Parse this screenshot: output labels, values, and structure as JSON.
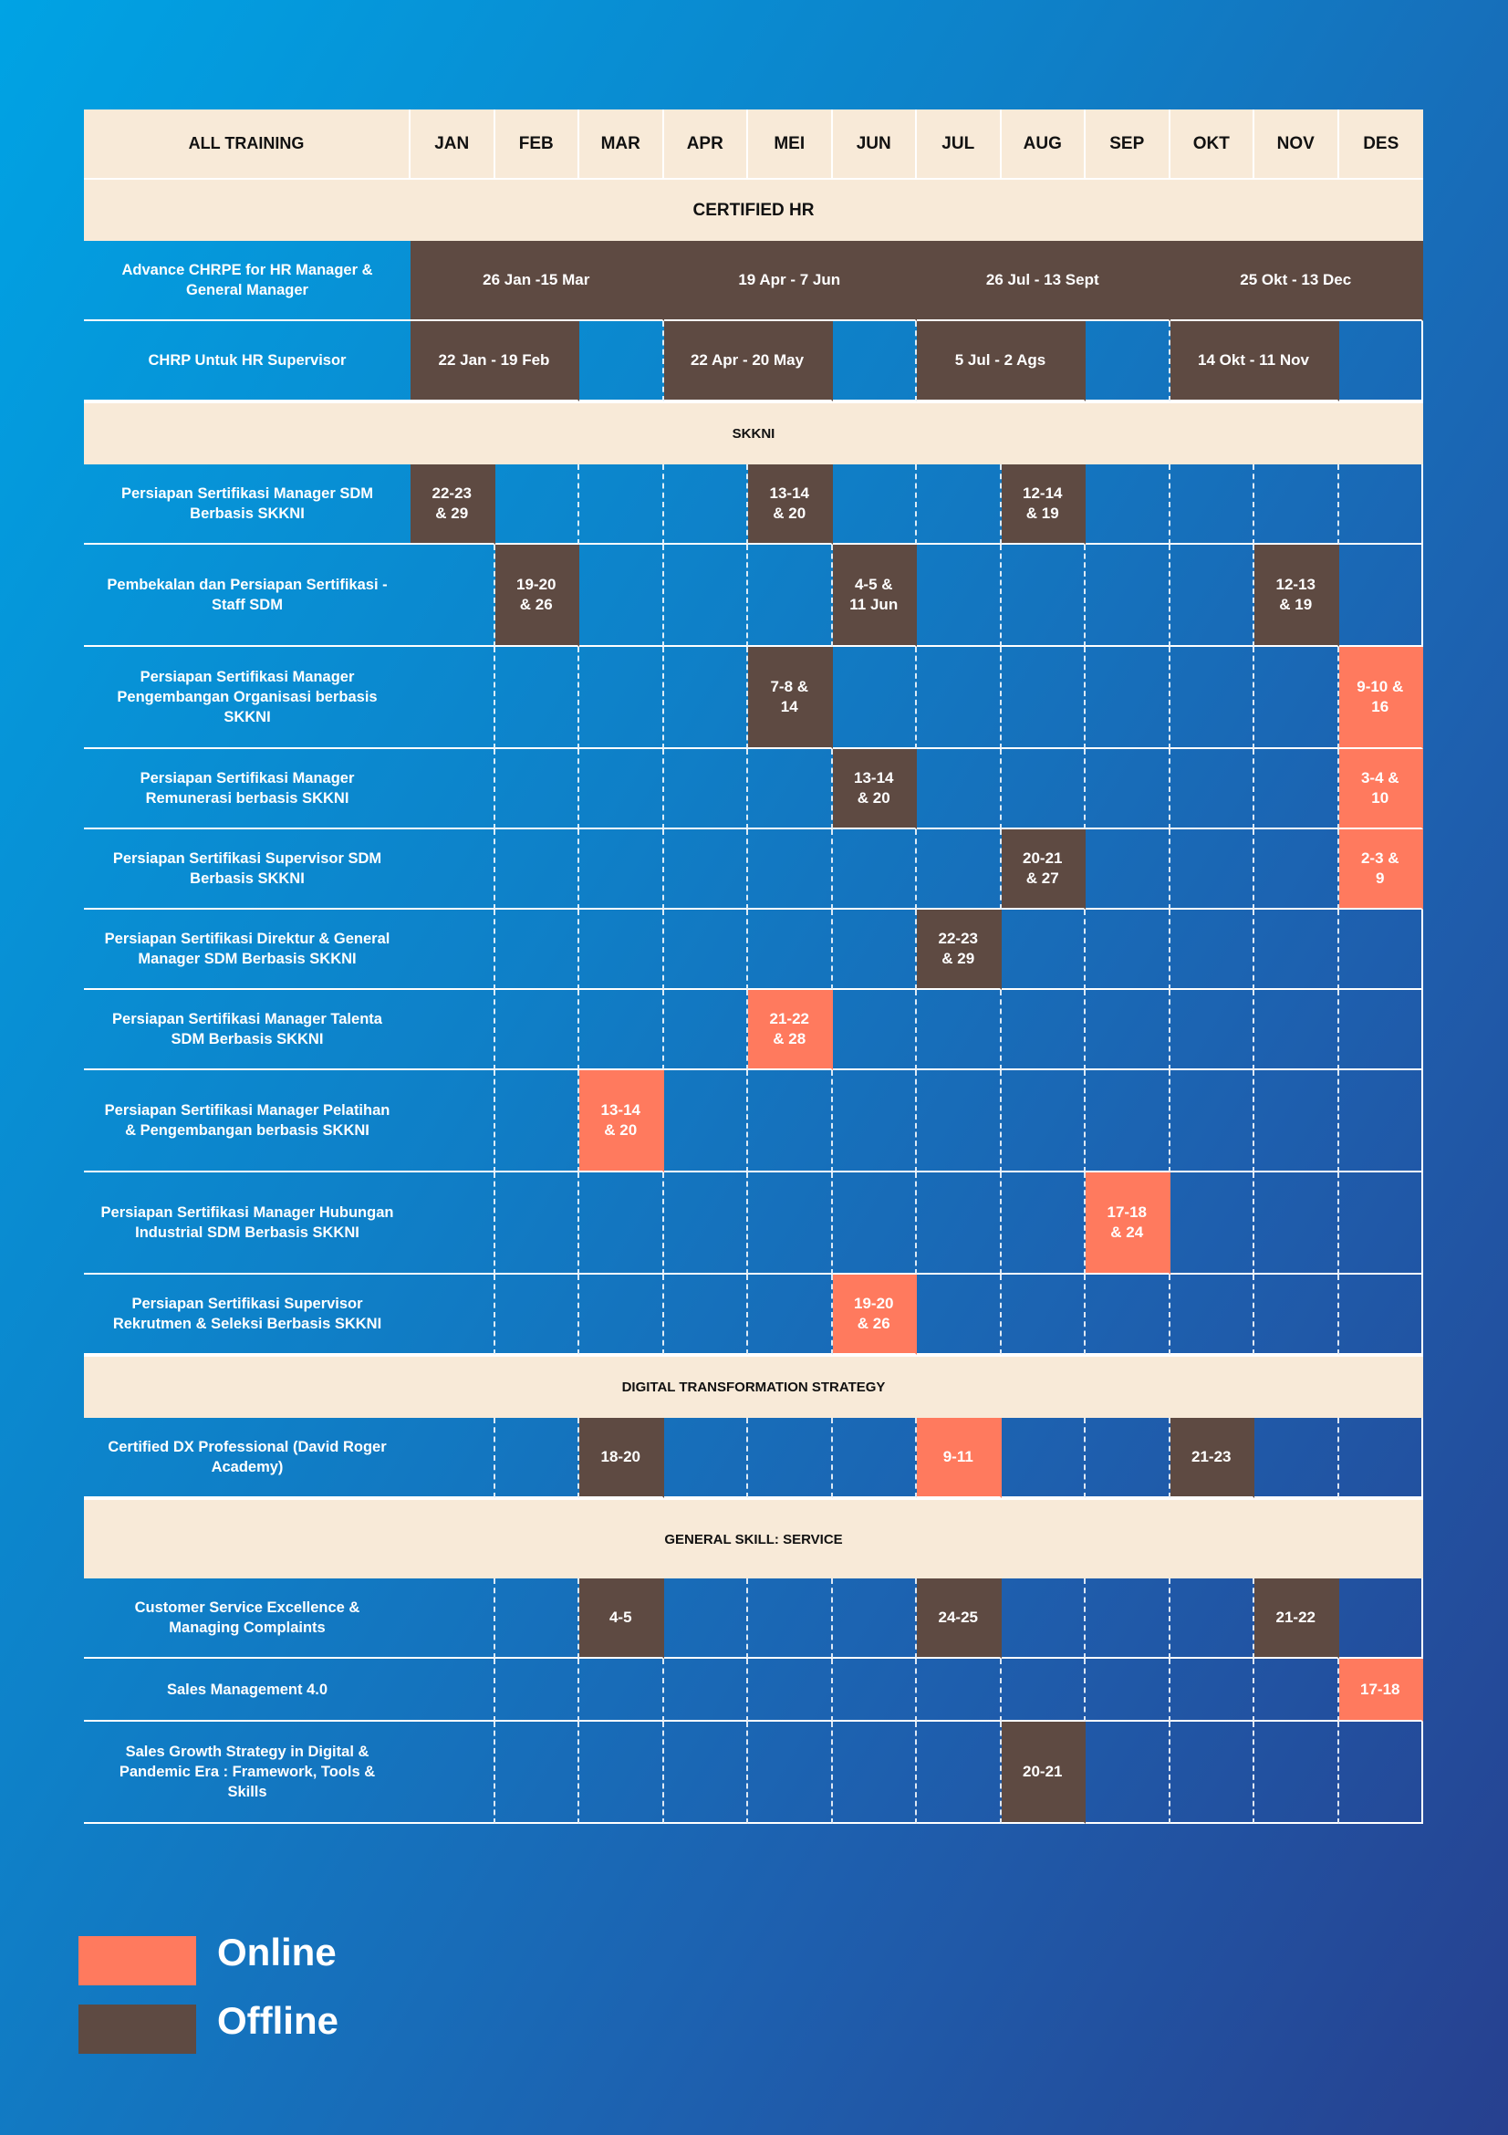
{
  "colors": {
    "background_start": "#00a3e4",
    "background_end": "#27408f",
    "header_bg": "#f8ead8",
    "online": "#ff7a5e",
    "offline": "#5e4a42",
    "text_light": "#ffffff",
    "text_dark": "#111111"
  },
  "table": {
    "header": "ALL TRAINING",
    "months": [
      "JAN",
      "FEB",
      "MAR",
      "APR",
      "MEI",
      "JUN",
      "JUL",
      "AUG",
      "SEP",
      "OKT",
      "NOV",
      "DES"
    ],
    "rows": [
      {
        "type": "section",
        "title": "CERTIFIED HR"
      },
      {
        "type": "training",
        "name": "Advance CHRPE for HR Manager & General Manager",
        "events": [
          {
            "label": "26 Jan -15 Mar",
            "start": 1,
            "span": 3,
            "mode": "offline"
          },
          {
            "label": "19 Apr - 7 Jun",
            "start": 4,
            "span": 3,
            "mode": "offline"
          },
          {
            "label": "26 Jul - 13 Sept",
            "start": 7,
            "span": 3,
            "mode": "offline"
          },
          {
            "label": "25 Okt - 13 Dec",
            "start": 10,
            "span": 3,
            "mode": "offline"
          }
        ]
      },
      {
        "type": "training",
        "name": "CHRP Untuk HR Supervisor",
        "events": [
          {
            "label": "22 Jan - 19 Feb",
            "start": 1,
            "span": 2,
            "mode": "offline"
          },
          {
            "label": "22 Apr - 20 May",
            "start": 4,
            "span": 2,
            "mode": "offline"
          },
          {
            "label": "5 Jul - 2 Ags",
            "start": 7,
            "span": 2,
            "mode": "offline"
          },
          {
            "label": "14 Okt - 11 Nov",
            "start": 10,
            "span": 2,
            "mode": "offline"
          }
        ]
      },
      {
        "type": "section",
        "title": "SKKNI"
      },
      {
        "type": "training",
        "name": "Persiapan Sertifikasi Manager SDM Berbasis SKKNI",
        "events": [
          {
            "label": "22-23\n& 29",
            "start": 1,
            "span": 1,
            "mode": "offline"
          },
          {
            "label": "13-14\n& 20",
            "start": 5,
            "span": 1,
            "mode": "offline"
          },
          {
            "label": "12-14\n& 19",
            "start": 8,
            "span": 1,
            "mode": "offline"
          }
        ]
      },
      {
        "type": "training",
        "name": "Pembekalan dan Persiapan Sertifikasi -Staff  SDM",
        "events": [
          {
            "label": "19-20\n& 26",
            "start": 2,
            "span": 1,
            "mode": "offline"
          },
          {
            "label": "4-5 &\n11 Jun",
            "start": 6,
            "span": 1,
            "mode": "offline"
          },
          {
            "label": "12-13\n& 19",
            "start": 11,
            "span": 1,
            "mode": "offline"
          }
        ]
      },
      {
        "type": "training",
        "name": "Persiapan Sertifikasi Manager Pengembangan Organisasi berbasis SKKNI",
        "events": [
          {
            "label": "7-8 &\n14",
            "start": 5,
            "span": 1,
            "mode": "offline"
          },
          {
            "label": "9-10 &\n16",
            "start": 12,
            "span": 1,
            "mode": "online"
          }
        ]
      },
      {
        "type": "training",
        "name": "Persiapan Sertifikasi Manager Remunerasi berbasis SKKNI",
        "events": [
          {
            "label": "13-14\n& 20",
            "start": 6,
            "span": 1,
            "mode": "offline"
          },
          {
            "label": "3-4 &\n10",
            "start": 12,
            "span": 1,
            "mode": "online"
          }
        ]
      },
      {
        "type": "training",
        "name": "Persiapan Sertifikasi Supervisor SDM Berbasis SKKNI",
        "events": [
          {
            "label": "20-21\n& 27",
            "start": 8,
            "span": 1,
            "mode": "offline"
          },
          {
            "label": "2-3 &\n9",
            "start": 12,
            "span": 1,
            "mode": "online"
          }
        ]
      },
      {
        "type": "training",
        "name": "Persiapan Sertifikasi Direktur & General Manager SDM Berbasis SKKNI",
        "events": [
          {
            "label": "22-23\n& 29",
            "start": 7,
            "span": 1,
            "mode": "offline"
          }
        ]
      },
      {
        "type": "training",
        "name": "Persiapan Sertifikasi Manager Talenta SDM Berbasis SKKNI",
        "events": [
          {
            "label": "21-22\n& 28",
            "start": 5,
            "span": 1,
            "mode": "online"
          }
        ]
      },
      {
        "type": "training",
        "name": "Persiapan Sertifikasi Manager Pelatihan & Pengembangan berbasis SKKNI",
        "events": [
          {
            "label": "13-14\n& 20",
            "start": 3,
            "span": 1,
            "mode": "online"
          }
        ]
      },
      {
        "type": "training",
        "name": "Persiapan Sertifikasi Manager Hubungan Industrial SDM Berbasis SKKNI",
        "events": [
          {
            "label": "17-18\n& 24",
            "start": 9,
            "span": 1,
            "mode": "online"
          }
        ]
      },
      {
        "type": "training",
        "name": "Persiapan Sertifikasi Supervisor Rekrutmen & Seleksi Berbasis SKKNI",
        "events": [
          {
            "label": "19-20\n& 26",
            "start": 6,
            "span": 1,
            "mode": "online"
          }
        ]
      },
      {
        "type": "section",
        "title": "DIGITAL TRANSFORMATION STRATEGY"
      },
      {
        "type": "training",
        "name": "Certified DX Professional (David Roger Academy)",
        "events": [
          {
            "label": "18-20",
            "start": 3,
            "span": 1,
            "mode": "offline"
          },
          {
            "label": "9-11",
            "start": 7,
            "span": 1,
            "mode": "online"
          },
          {
            "label": "21-23",
            "start": 10,
            "span": 1,
            "mode": "offline"
          }
        ]
      },
      {
        "type": "section",
        "title": "GENERAL SKILL: SERVICE"
      },
      {
        "type": "training",
        "name": "Customer Service Excellence & Managing Complaints",
        "events": [
          {
            "label": "4-5",
            "start": 3,
            "span": 1,
            "mode": "offline"
          },
          {
            "label": "24-25",
            "start": 7,
            "span": 1,
            "mode": "offline"
          },
          {
            "label": "21-22",
            "start": 11,
            "span": 1,
            "mode": "offline"
          }
        ]
      },
      {
        "type": "training",
        "name": "Sales Management 4.0",
        "events": [
          {
            "label": "17-18",
            "start": 12,
            "span": 1,
            "mode": "online"
          }
        ]
      },
      {
        "type": "training",
        "name": "Sales Growth Strategy in Digital & Pandemic Era : Framework, Tools & Skills",
        "events": [
          {
            "label": "20-21",
            "start": 8,
            "span": 1,
            "mode": "offline"
          }
        ]
      }
    ]
  },
  "legend": [
    {
      "label": "Online",
      "mode": "online"
    },
    {
      "label": "Offline",
      "mode": "offline"
    }
  ]
}
